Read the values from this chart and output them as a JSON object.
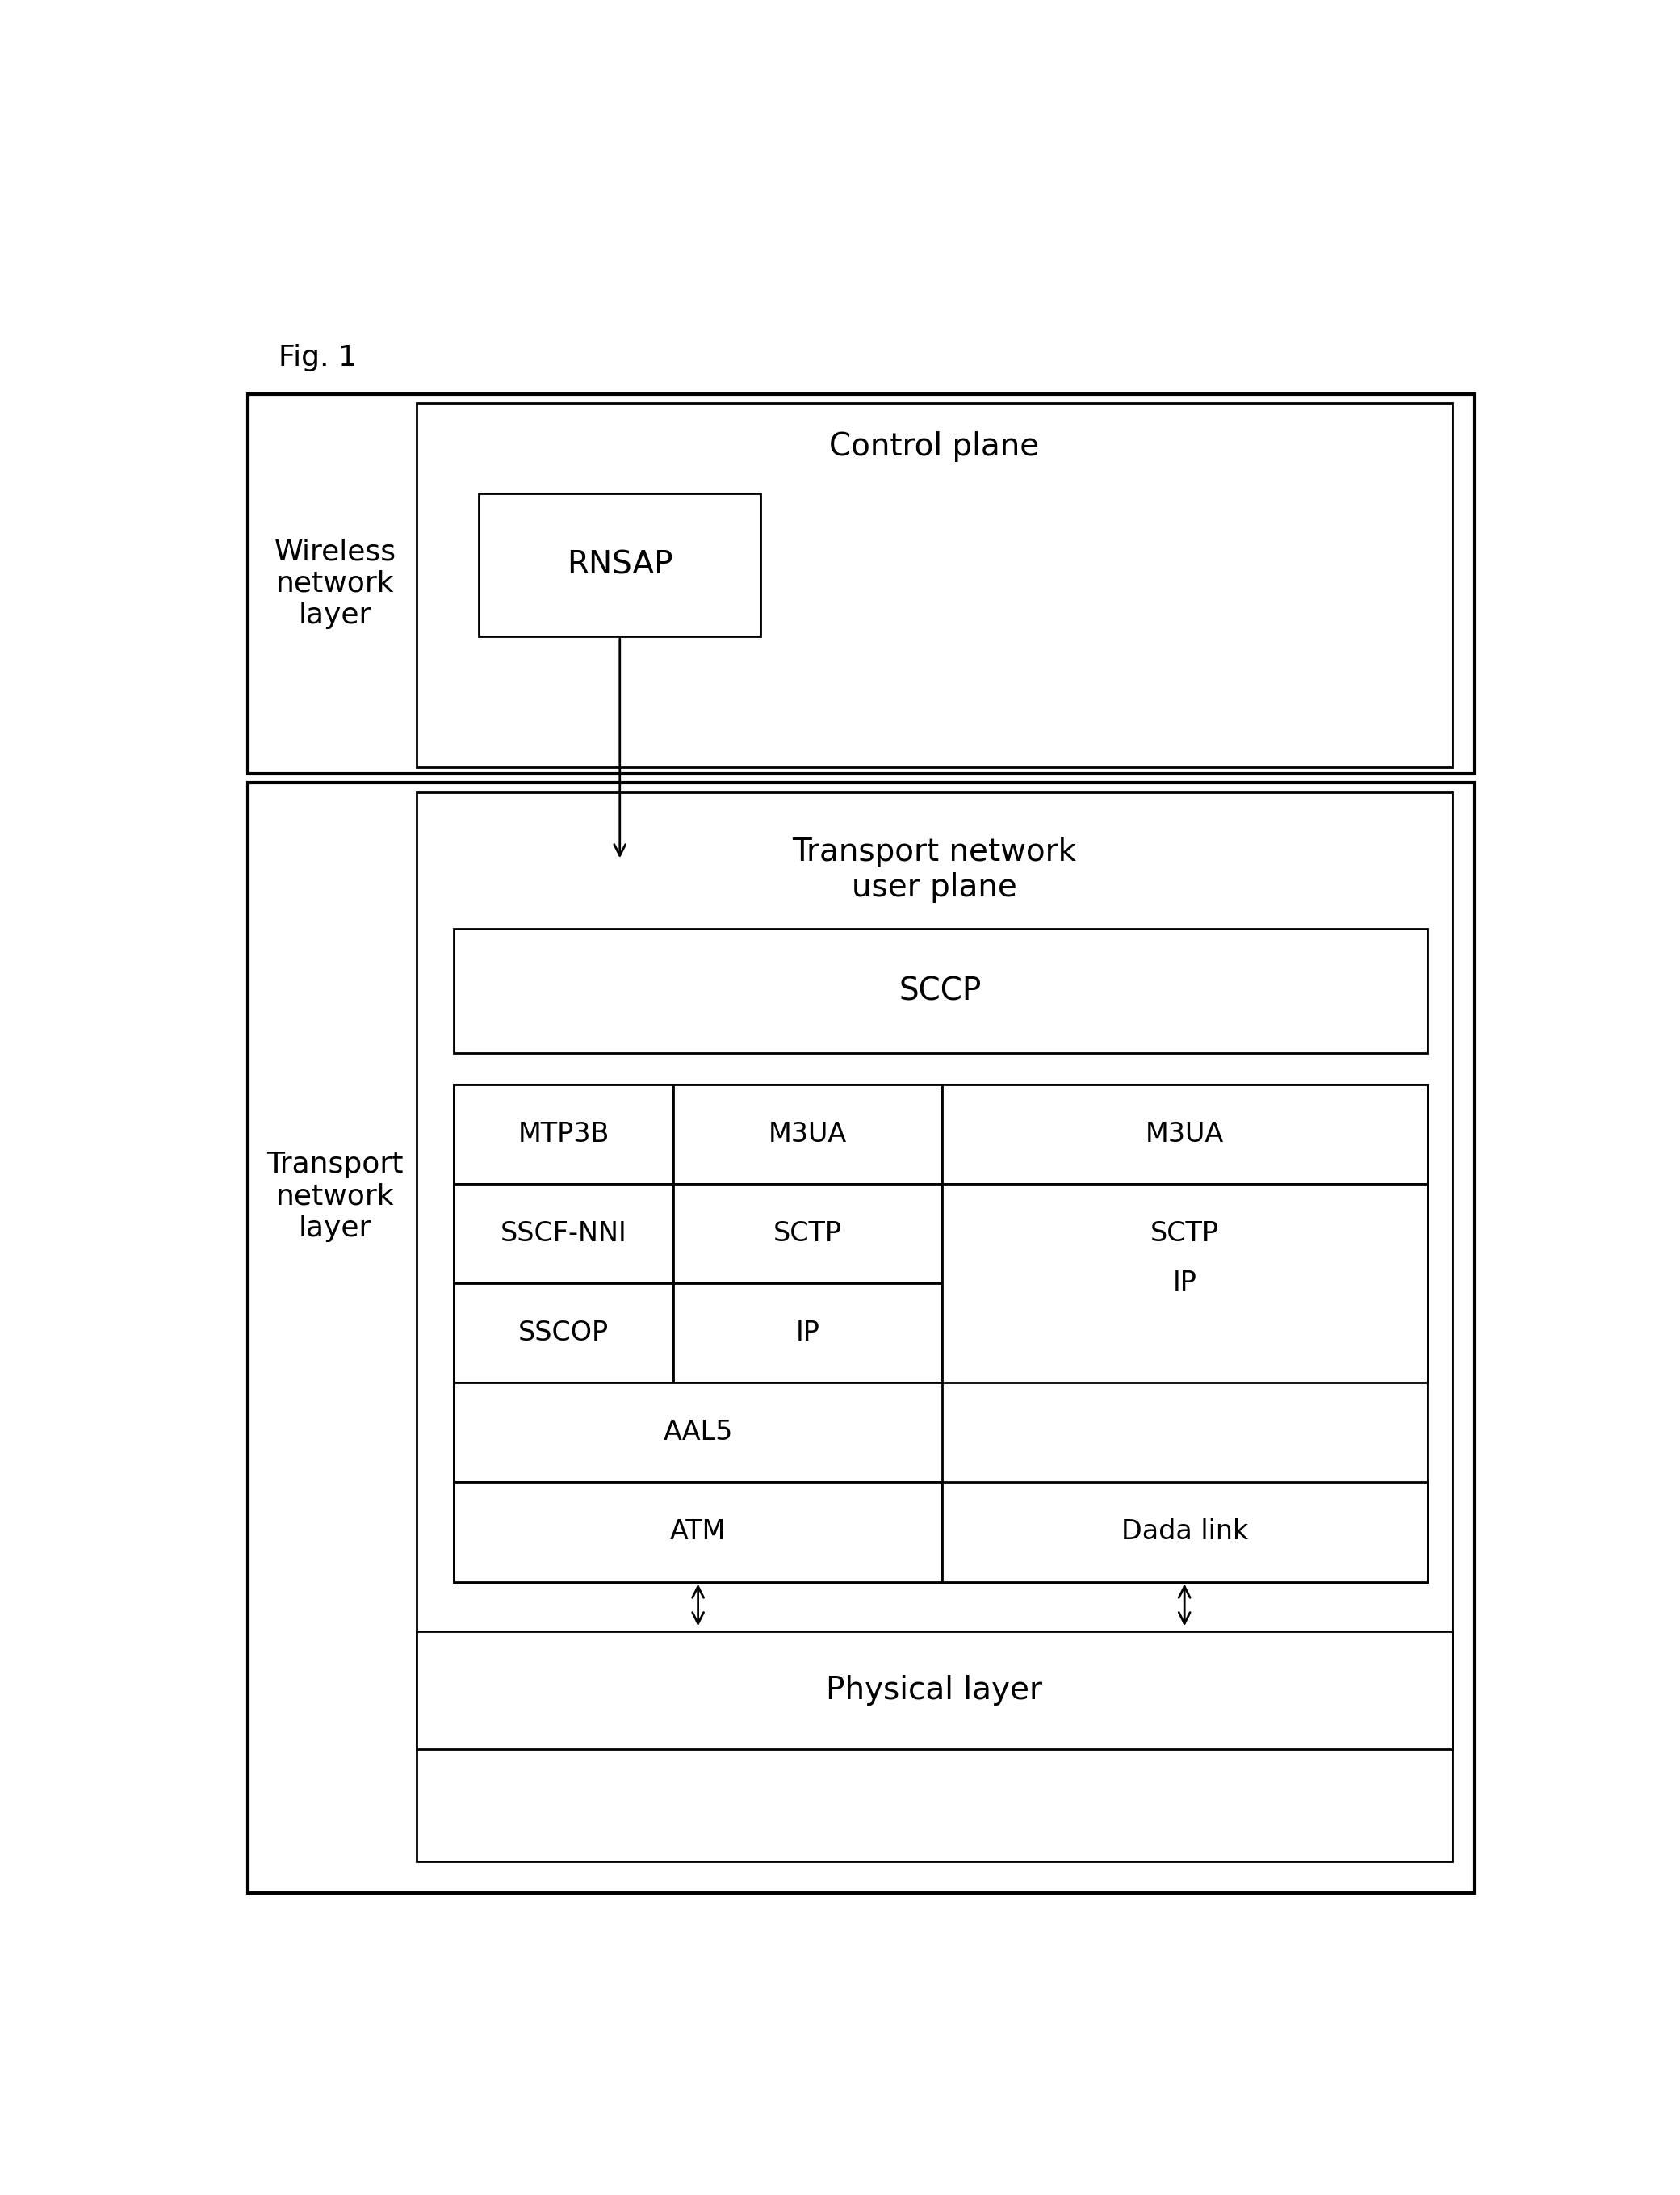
{
  "fig_label": "Fig. 1",
  "background_color": "#ffffff",
  "line_color": "#000000",
  "wireless_layer_label": "Wireless\nnetwork\nlayer",
  "transport_layer_label": "Transport\nnetwork\nlayer",
  "control_plane_label": "Control plane",
  "rnsap_label": "RNSAP",
  "transport_user_plane_label": "Transport network\nuser plane",
  "sccp_label": "SCCP",
  "mtp3b_label": "MTP3B",
  "m3ua1_label": "M3UA",
  "m3ua2_label": "M3UA",
  "sscfnni_label": "SSCF-NNI",
  "sctp1_label": "SCTP",
  "sctp2_label": "SCTP",
  "sscop_label": "SSCOP",
  "ip1_label": "IP",
  "aal5_label": "AAL5",
  "ip2_label": "IP",
  "atm_label": "ATM",
  "datalink_label": "Dada link",
  "physical_label": "Physical layer",
  "font_size_title": 28,
  "font_size_label": 26,
  "font_size_cell": 24,
  "font_size_figlabel": 26
}
